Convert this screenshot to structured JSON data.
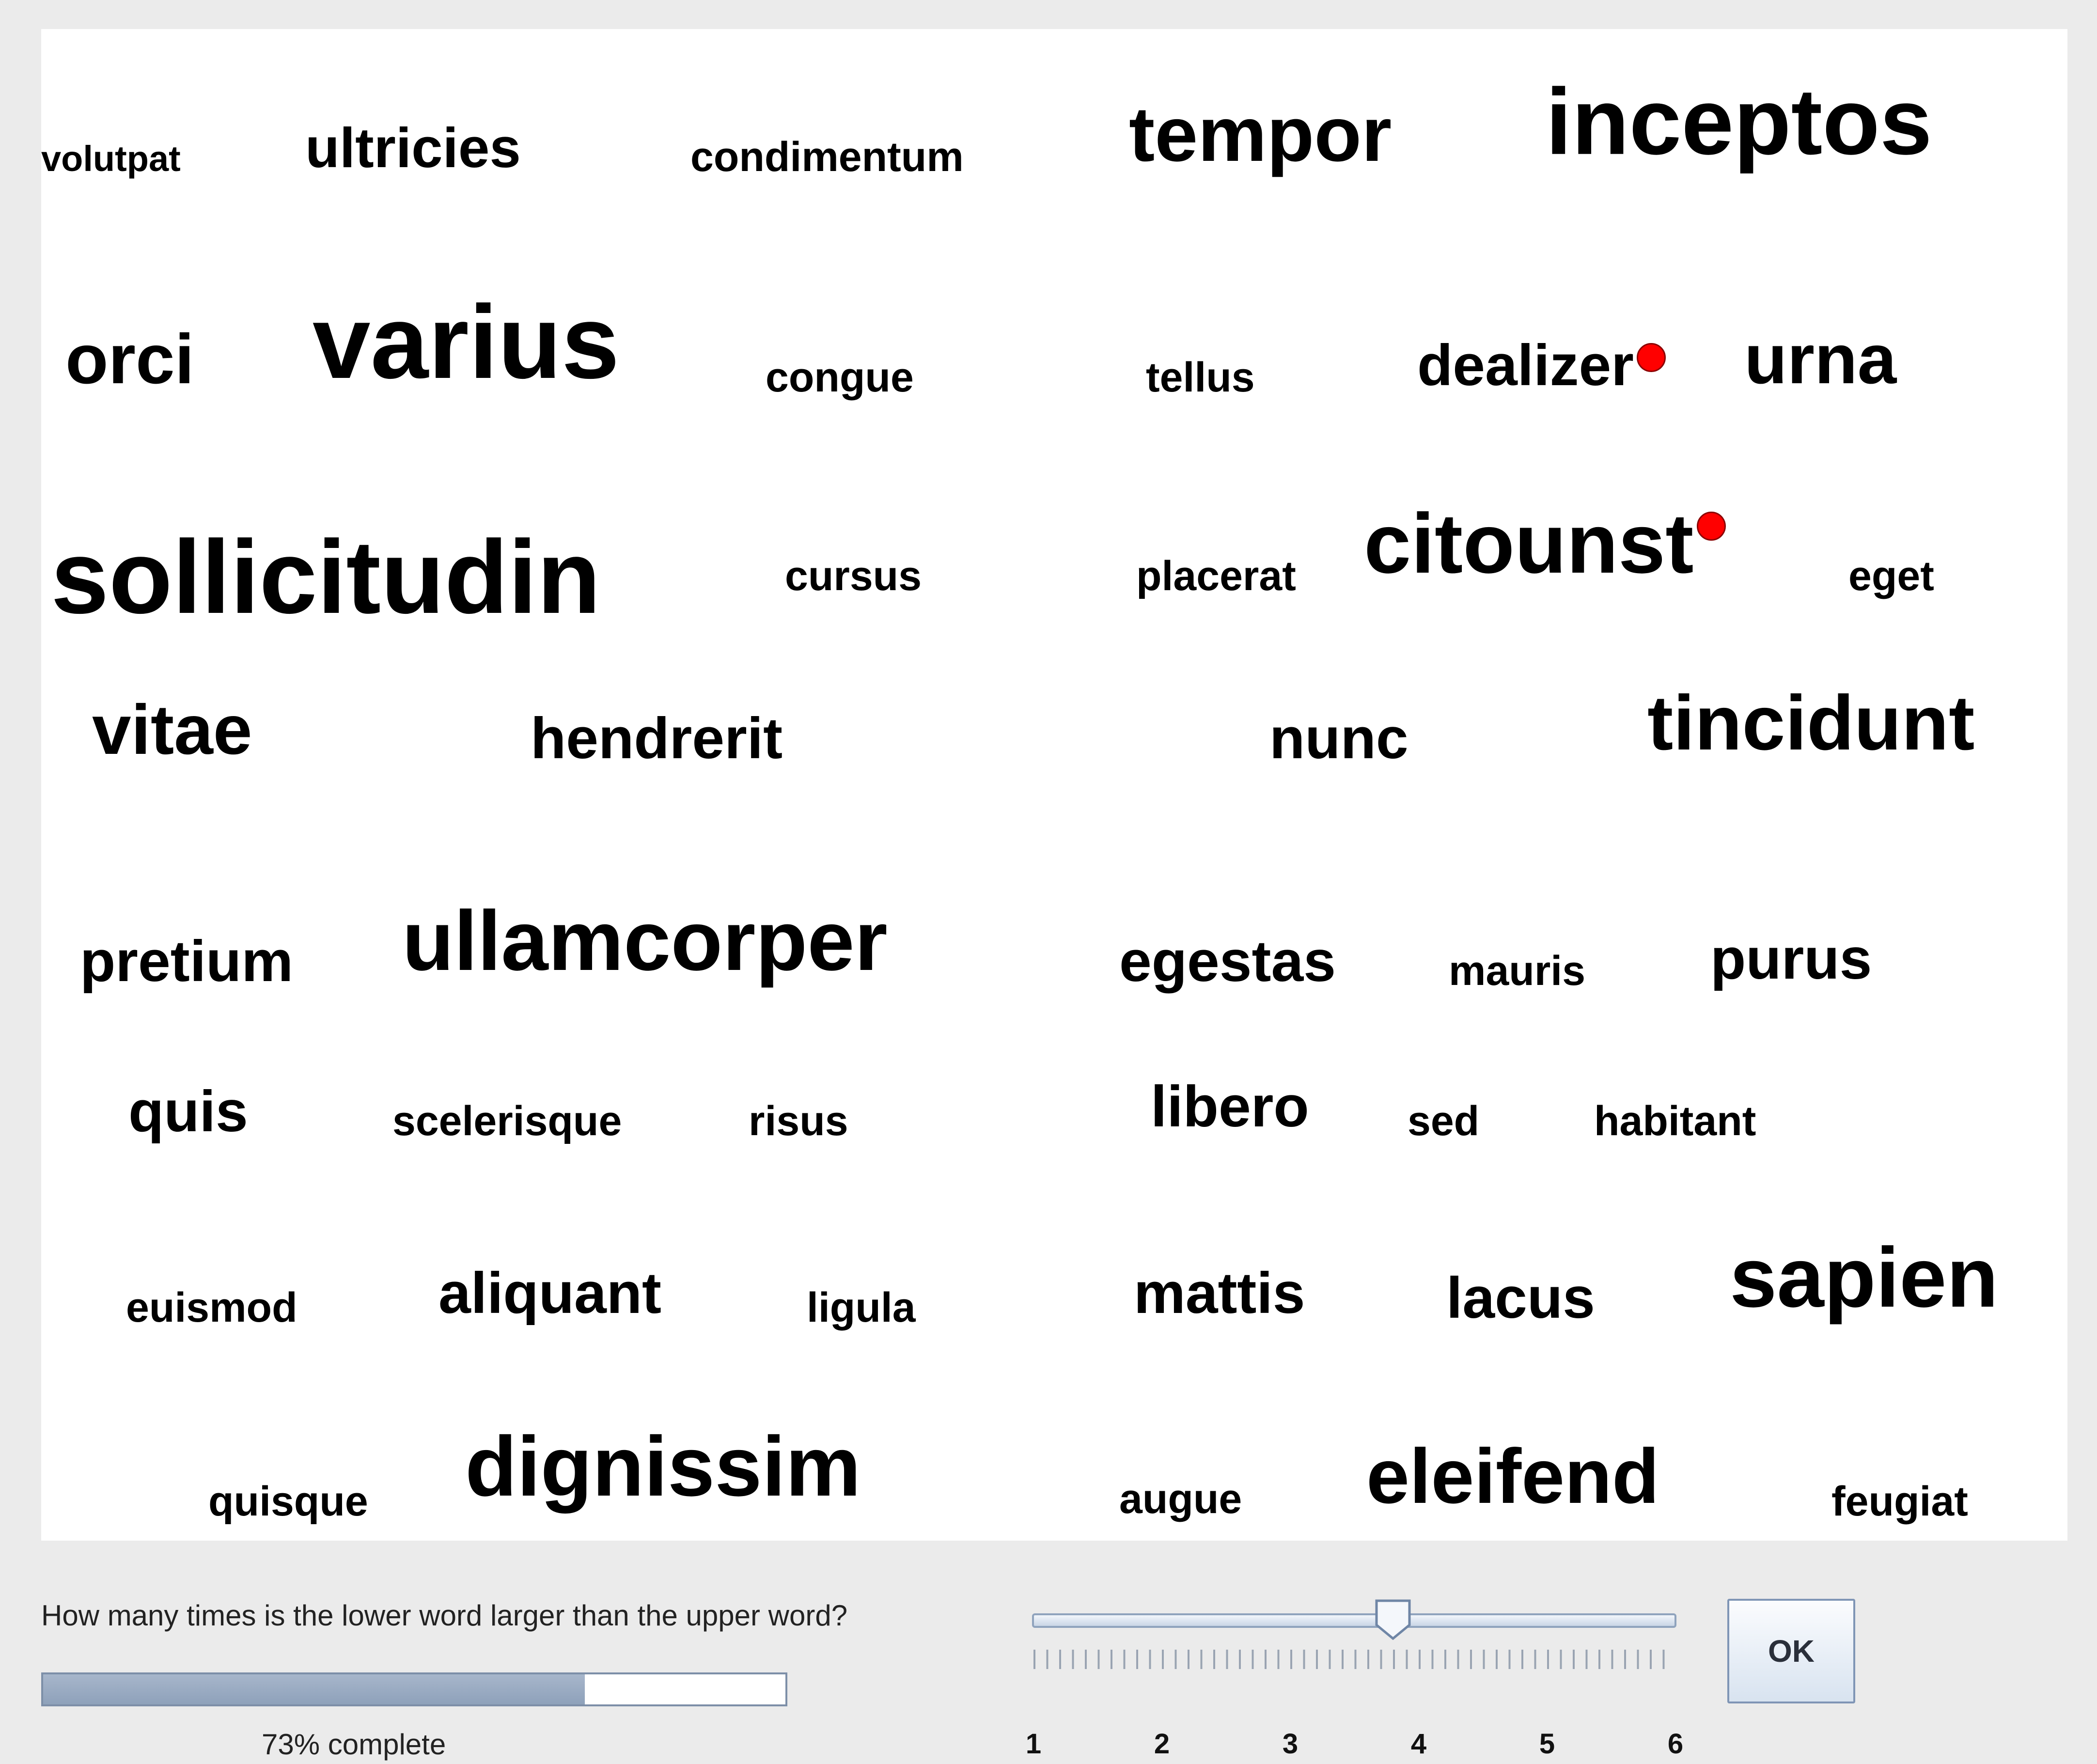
{
  "cloud": {
    "words": [
      {
        "text": "volutpat"
      },
      {
        "text": "ultricies"
      },
      {
        "text": "condimentum"
      },
      {
        "text": "tempor"
      },
      {
        "text": "inceptos"
      },
      {
        "text": "orci"
      },
      {
        "text": "varius"
      },
      {
        "text": "congue"
      },
      {
        "text": "tellus"
      },
      {
        "text": "dealizer"
      },
      {
        "text": "urna"
      },
      {
        "text": "sollicitudin"
      },
      {
        "text": "cursus"
      },
      {
        "text": "placerat"
      },
      {
        "text": "citounst"
      },
      {
        "text": "eget"
      },
      {
        "text": "vitae"
      },
      {
        "text": "hendrerit"
      },
      {
        "text": "nunc"
      },
      {
        "text": "tincidunt"
      },
      {
        "text": "pretium"
      },
      {
        "text": "ullamcorper"
      },
      {
        "text": "egestas"
      },
      {
        "text": "mauris"
      },
      {
        "text": "purus"
      },
      {
        "text": "quis"
      },
      {
        "text": "scelerisque"
      },
      {
        "text": "risus"
      },
      {
        "text": "libero"
      },
      {
        "text": "sed"
      },
      {
        "text": "habitant"
      },
      {
        "text": "euismod"
      },
      {
        "text": "aliquant"
      },
      {
        "text": "ligula"
      },
      {
        "text": "mattis"
      },
      {
        "text": "lacus"
      },
      {
        "text": "sapien"
      },
      {
        "text": "quisque"
      },
      {
        "text": "dignissim"
      },
      {
        "text": "augue"
      },
      {
        "text": "eleifend"
      },
      {
        "text": "feugiat"
      }
    ],
    "marked_words": [
      "dealizer",
      "citounst"
    ],
    "marker_color": "#ff0000"
  },
  "question": "How many times is the lower word larger than the upper word?",
  "progress": {
    "fraction": 0.73,
    "label": "73% complete"
  },
  "slider": {
    "min": 1,
    "max": 6,
    "value": 3.8,
    "tick_labels": [
      "1",
      "2",
      "3",
      "4",
      "5",
      "6"
    ]
  },
  "ok_label": "OK"
}
